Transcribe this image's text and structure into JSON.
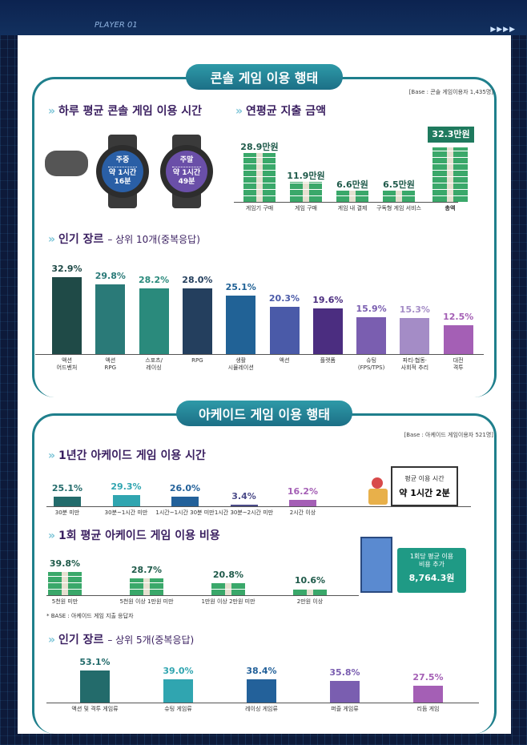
{
  "header": {
    "player": "PLAYER 01",
    "arrows": "▶▶▶▶"
  },
  "console": {
    "title": "콘솔 게임 이용 행태",
    "base": "[Base : 콘솔 게임이용자 1,435명]",
    "daily": {
      "heading": "하루 평균 콘솔 게임 이용 시간",
      "weekday": {
        "label": "주중",
        "value": "약 1시간",
        "value2": "16분",
        "color": "#2a5fa6"
      },
      "weekend": {
        "label": "주말",
        "value": "약 1시간",
        "value2": "49분",
        "color": "#6a4fa8"
      }
    },
    "spend": {
      "heading": "연평균 지출 금액",
      "items": [
        {
          "label": "게임기 구매",
          "value": "28.9만원",
          "amount": 28.9
        },
        {
          "label": "게임 구매",
          "value": "11.9만원",
          "amount": 11.9
        },
        {
          "label": "게임 내 결제",
          "value": "6.6만원",
          "amount": 6.6
        },
        {
          "label": "구독형 게임 서비스",
          "value": "6.5만원",
          "amount": 6.5
        },
        {
          "label": "총액",
          "value": "32.3만원",
          "amount": 32.3
        }
      ]
    },
    "genre": {
      "heading": "인기 장르",
      "sub": "– 상위 10개(중복응답)"
    }
  },
  "arcade": {
    "title": "아케이드 게임 이용 행태",
    "base": "[Base : 아케이드 게임이용자 521명]",
    "time_heading": "1년간 아케이드 게임 이용 시간",
    "avg_time": {
      "label": "평균 이용 시간",
      "value": "약 1시간 2분"
    },
    "cost_heading": "1회 평균 아케이드 게임 이용 비용",
    "avg_cost": {
      "label": "1회당 평균 이용\n비용 추가",
      "value": "8,764.3원"
    },
    "cost_note": "* BASE : 아케이드 게임 지출 응답자",
    "genre": {
      "heading": "인기 장르",
      "sub": "– 상위 5개(중복응답)"
    }
  },
  "chart_data": [
    {
      "type": "bar",
      "title": "인기 장르 – 상위 10개(중복응답)",
      "categories": [
        "액션\n어드벤처",
        "액션\nRPG",
        "스포츠/\n레이싱",
        "RPG",
        "생활\n시뮬레이션",
        "액션",
        "플랫폼",
        "슈팅\n(FPS/TPS)",
        "파티·협동·\n사회적 추리",
        "대전\n격투"
      ],
      "values": [
        32.9,
        29.8,
        28.2,
        28.0,
        25.1,
        20.3,
        19.6,
        15.9,
        15.3,
        12.5
      ],
      "labels": [
        "32.9%",
        "29.8%",
        "28.2%",
        "28.0%",
        "25.1%",
        "20.3%",
        "19.6%",
        "15.9%",
        "15.3%",
        "12.5%"
      ],
      "colors": [
        "#1f4a47",
        "#2a7a78",
        "#2a8a7c",
        "#243f5e",
        "#216296",
        "#4a5aa8",
        "#4b2d80",
        "#7a5eb0",
        "#a48cc6",
        "#a45fb5"
      ]
    },
    {
      "type": "bar",
      "title": "1년간 아케이드 게임 이용 시간",
      "categories": [
        "30분 미만",
        "30분~1시간 미만",
        "1시간~1시간 30분 미만",
        "1시간 30분~2시간 미만",
        "2시간 이상"
      ],
      "values": [
        25.1,
        29.3,
        26.0,
        3.4,
        16.2
      ],
      "labels": [
        "25.1%",
        "29.3%",
        "26.0%",
        "3.4%",
        "16.2%"
      ],
      "colors": [
        "#236b6b",
        "#30a5b0",
        "#23619a",
        "#4a4a88",
        "#a45fb5"
      ]
    },
    {
      "type": "bar",
      "title": "1회 평균 아케이드 게임 이용 비용",
      "categories": [
        "5천원 미만",
        "5천원 이상 1만원 미만",
        "1만원 이상 2만원 미만",
        "2만원 이상"
      ],
      "values": [
        39.8,
        28.7,
        20.8,
        10.6
      ],
      "labels": [
        "39.8%",
        "28.7%",
        "20.8%",
        "10.6%"
      ],
      "colors": [
        "#1f5a4a",
        "#1f5a4a",
        "#1f5a4a",
        "#1f5a4a"
      ]
    },
    {
      "type": "bar",
      "title": "인기 장르 – 상위 5개(중복응답)",
      "categories": [
        "액션 및 격투 게임류",
        "슈팅 게임류",
        "레이싱 게임류",
        "퍼즐 게임류",
        "리듬 게임"
      ],
      "values": [
        53.1,
        39.0,
        38.4,
        35.8,
        27.5
      ],
      "labels": [
        "53.1%",
        "39.0%",
        "38.4%",
        "35.8%",
        "27.5%"
      ],
      "colors": [
        "#236b6b",
        "#30a5b0",
        "#23619a",
        "#7a5eb0",
        "#a45fb5"
      ]
    }
  ]
}
